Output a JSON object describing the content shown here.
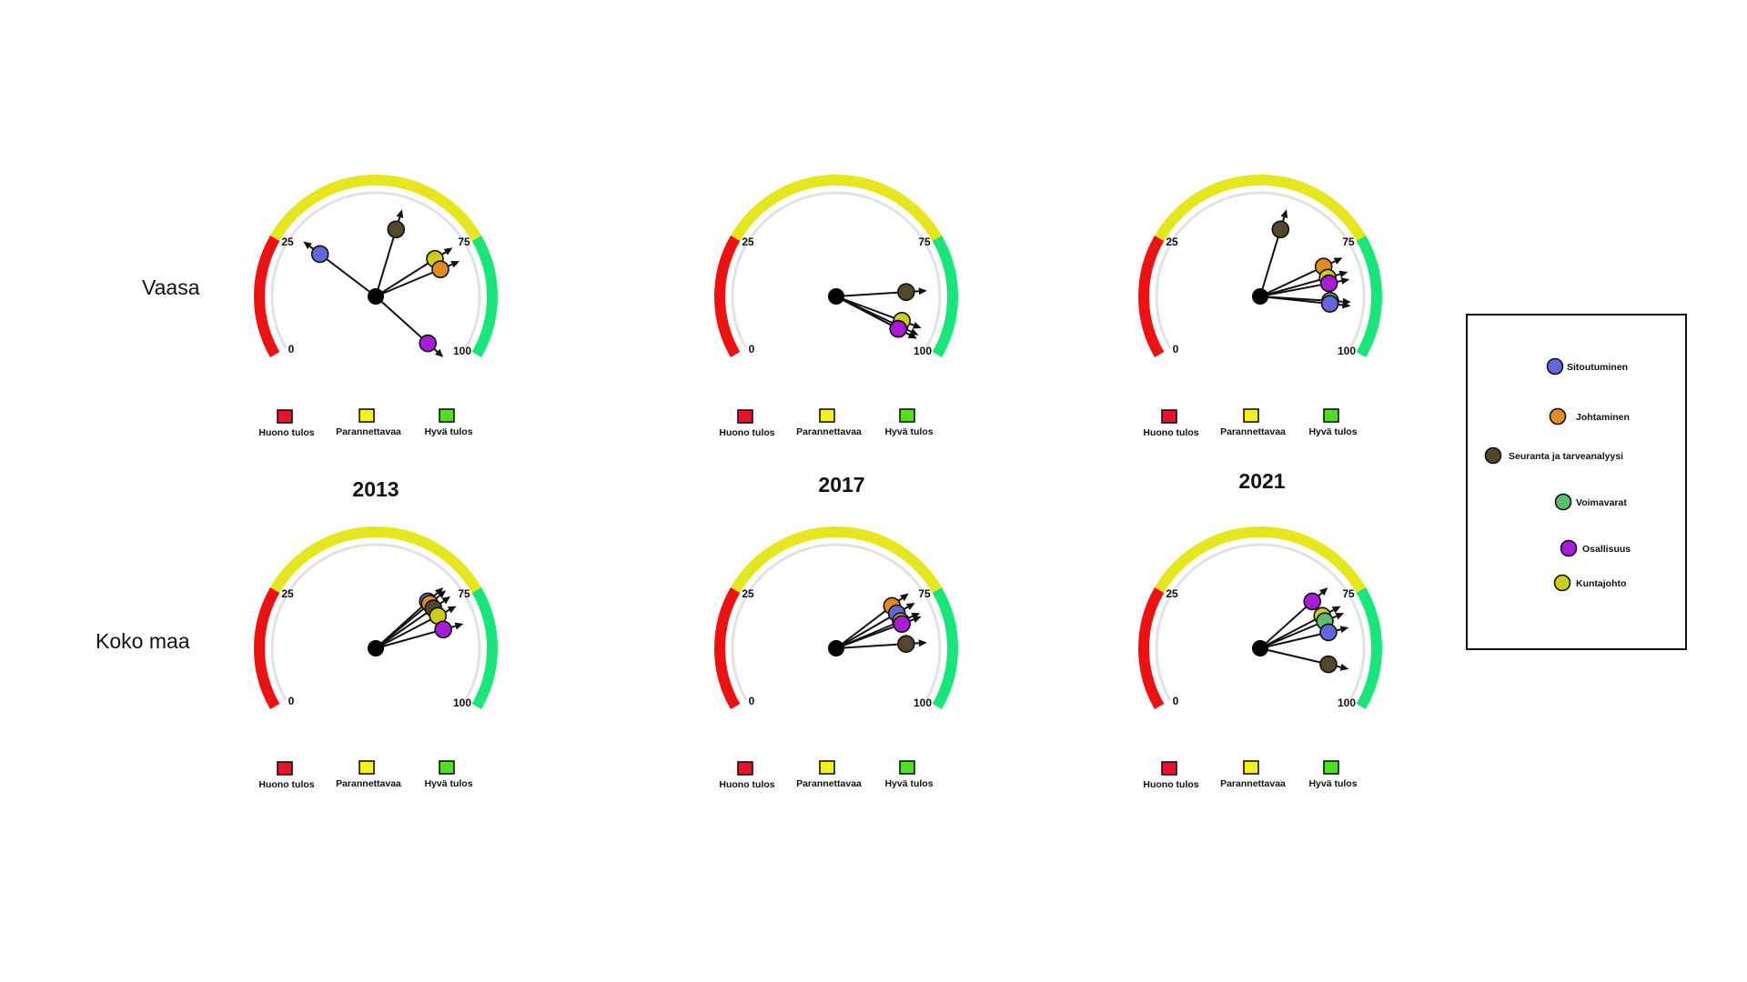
{
  "rows": [
    "Vaasa",
    "Koko maa"
  ],
  "years": [
    "2013",
    "2017",
    "2021"
  ],
  "scale": {
    "min": 0,
    "max": 100,
    "ticks": [
      "0",
      "25",
      "75",
      "100"
    ],
    "zones": [
      {
        "from": 0,
        "to": 25,
        "color": "#ee1111"
      },
      {
        "from": 25,
        "to": 75,
        "color": "#e6e61e"
      },
      {
        "from": 75,
        "to": 100,
        "color": "#18e67a"
      }
    ]
  },
  "zone_legend": [
    {
      "label": "Huono tulos",
      "color": "#e8132a"
    },
    {
      "label": "Parannettavaa",
      "color": "#f4f01c"
    },
    {
      "label": "Hyvä tulos",
      "color": "#4ee21e"
    }
  ],
  "indicator_legend": [
    {
      "key": "sitoutuminen",
      "label": "Sitoutuminen",
      "color": "#6565dd"
    },
    {
      "key": "johtaminen",
      "label": "Johtaminen",
      "color": "#e48a22"
    },
    {
      "key": "seuranta",
      "label": "Seuranta ja tarveanalyysi",
      "color": "#54452d"
    },
    {
      "key": "voimavarat",
      "label": "Voimavarat",
      "color": "#5cbd6f"
    },
    {
      "key": "osallisuus",
      "label": "Osallisuus",
      "color": "#a81bd8"
    },
    {
      "key": "kuntajohto",
      "label": "Kuntajohto",
      "color": "#cccc1a"
    }
  ],
  "chart_data": [
    {
      "type": "gauge",
      "row": "Vaasa",
      "year": "2013",
      "values": [
        {
          "key": "sitoutuminen",
          "value": 28
        },
        {
          "key": "seuranta",
          "value": 57
        },
        {
          "key": "kuntajohto",
          "value": 74
        },
        {
          "key": "johtaminen",
          "value": 78
        },
        {
          "key": "osallisuus",
          "value": 105
        }
      ]
    },
    {
      "type": "gauge",
      "row": "Vaasa",
      "year": "2017",
      "values": [
        {
          "key": "seuranta",
          "value": 86
        },
        {
          "key": "sitoutuminen",
          "value": 98
        },
        {
          "key": "kuntajohto",
          "value": 96
        },
        {
          "key": "johtaminen",
          "value": 99
        },
        {
          "key": "osallisuus",
          "value": 99
        }
      ]
    },
    {
      "type": "gauge",
      "row": "Vaasa",
      "year": "2021",
      "values": [
        {
          "key": "seuranta",
          "value": 57
        },
        {
          "key": "johtaminen",
          "value": 77
        },
        {
          "key": "kuntajohto",
          "value": 81
        },
        {
          "key": "osallisuus",
          "value": 83
        },
        {
          "key": "voimavarat",
          "value": 89
        },
        {
          "key": "sitoutuminen",
          "value": 90
        }
      ]
    },
    {
      "type": "gauge",
      "row": "Koko maa",
      "year": "2013",
      "values": [
        {
          "key": "sitoutuminen",
          "value": 70
        },
        {
          "key": "johtaminen",
          "value": 71
        },
        {
          "key": "seuranta",
          "value": 73
        },
        {
          "key": "kuntajohto",
          "value": 76
        },
        {
          "key": "osallisuus",
          "value": 81
        }
      ]
    },
    {
      "type": "gauge",
      "row": "Koko maa",
      "year": "2017",
      "values": [
        {
          "key": "johtaminen",
          "value": 72
        },
        {
          "key": "sitoutuminen",
          "value": 75
        },
        {
          "key": "kuntajohto",
          "value": 78
        },
        {
          "key": "osallisuus",
          "value": 79
        },
        {
          "key": "seuranta",
          "value": 86
        }
      ]
    },
    {
      "type": "gauge",
      "row": "Koko maa",
      "year": "2021",
      "values": [
        {
          "key": "osallisuus",
          "value": 70
        },
        {
          "key": "kuntajohto",
          "value": 76
        },
        {
          "key": "voimavarat",
          "value": 78
        },
        {
          "key": "sitoutuminen",
          "value": 82
        },
        {
          "key": "seuranta",
          "value": 93
        }
      ]
    }
  ]
}
